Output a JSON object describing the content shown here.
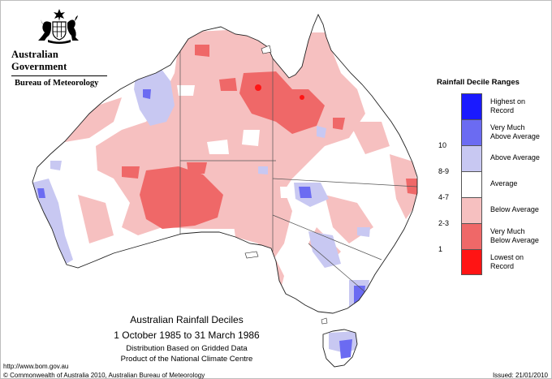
{
  "header": {
    "government": "Australian Government",
    "bureau": "Bureau of Meteorology"
  },
  "map": {
    "title": "Australian Rainfall Deciles",
    "period": "1 October 1985 to 31 March 1986",
    "note_line1": "Distribution Based on Gridded Data",
    "note_line2": "Product of the National Climate Centre"
  },
  "legend": {
    "title": "Rainfall Decile Ranges",
    "items": [
      {
        "range": "",
        "label_line1": "Highest on",
        "label_line2": "Record",
        "color": "#1a1aff"
      },
      {
        "range": "10",
        "label_line1": "Very Much",
        "label_line2": "Above Average",
        "color": "#6b6bf2"
      },
      {
        "range": "8-9",
        "label_line1": "Above Average",
        "label_line2": "",
        "color": "#c8c8f2"
      },
      {
        "range": "4-7",
        "label_line1": "Average",
        "label_line2": "",
        "color": "#ffffff"
      },
      {
        "range": "2-3",
        "label_line1": "Below Average",
        "label_line2": "",
        "color": "#f6c0c0"
      },
      {
        "range": "1",
        "label_line1": "Very Much",
        "label_line2": "Below Average",
        "color": "#ef6868"
      },
      {
        "range": "",
        "label_line1": "Lowest on",
        "label_line2": "Record",
        "color": "#ff1414"
      }
    ]
  },
  "footer": {
    "url": "http://www.bom.gov.au",
    "copyright": "© Commonwealth of Australia 2010, Australian Bureau of Meteorology",
    "issued": "Issued: 21/01/2010"
  }
}
